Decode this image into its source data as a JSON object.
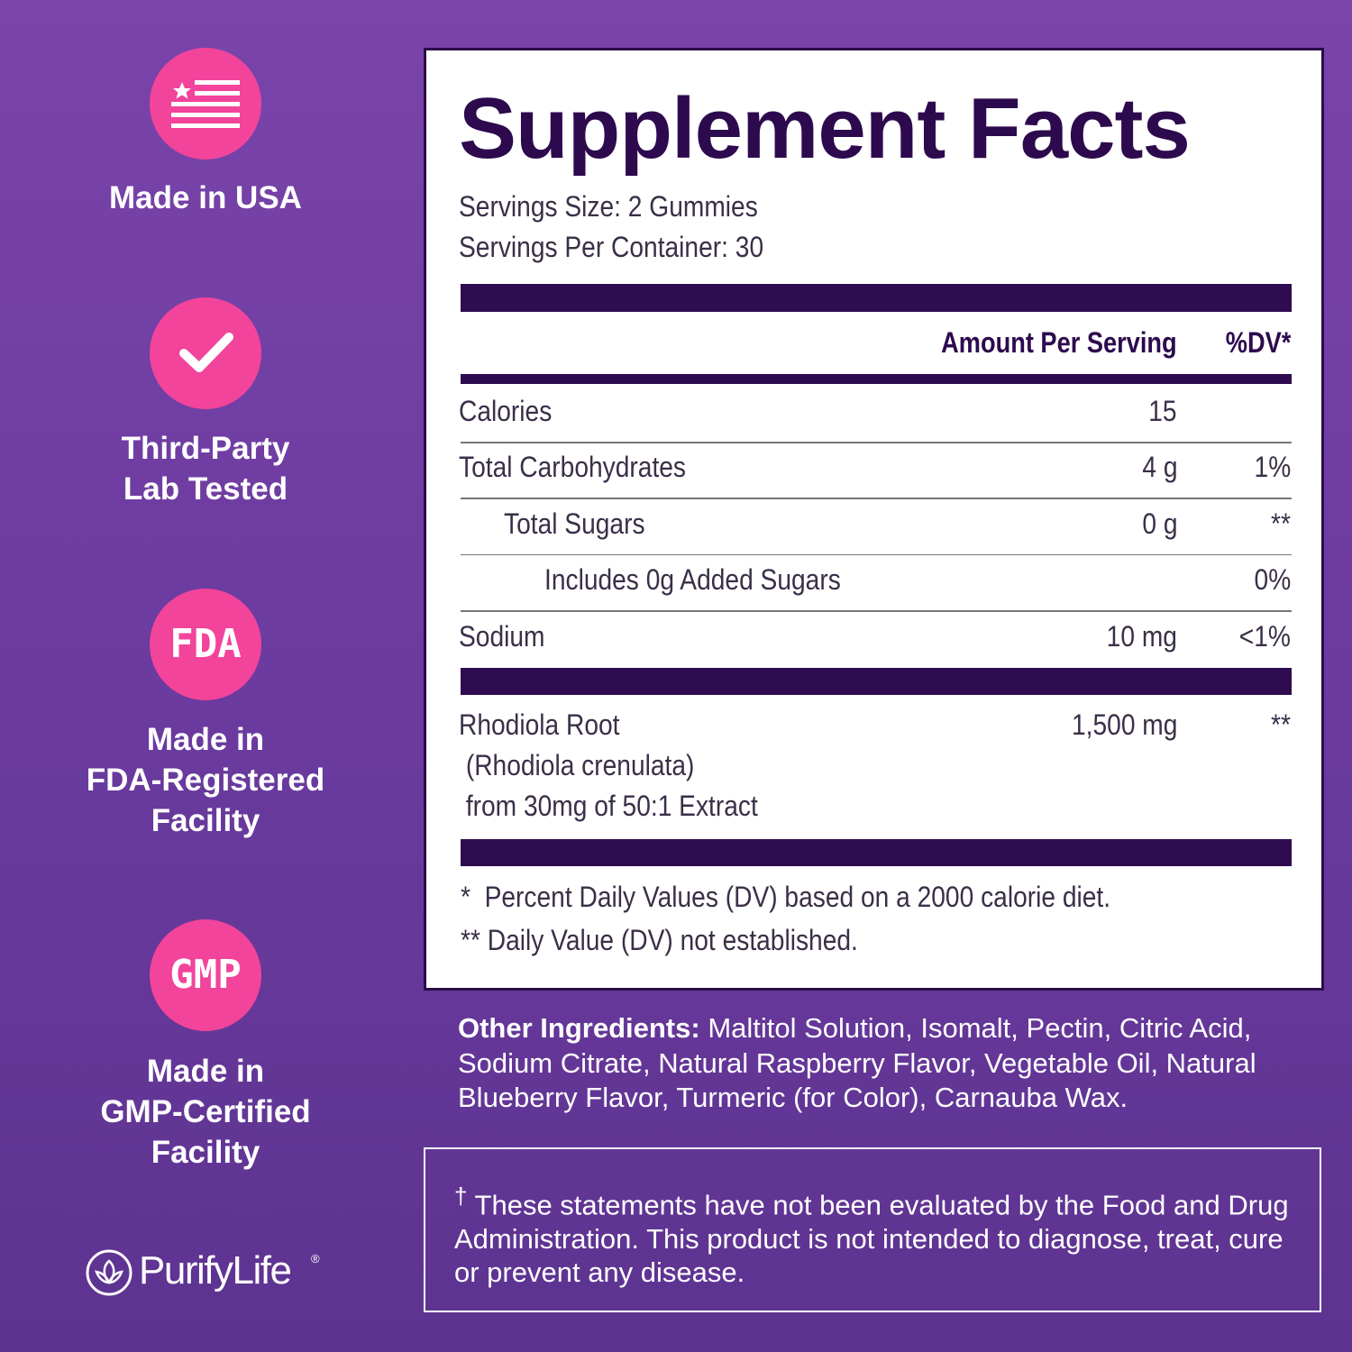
{
  "badges": [
    {
      "icon": null,
      "lines": [
        "Made in USA"
      ]
    },
    {
      "icon": null,
      "lines": [
        "Third-Party",
        "Lab Tested"
      ]
    },
    {
      "icon": "FDA",
      "lines": [
        "Made in",
        "FDA-Registered",
        "Facility"
      ]
    },
    {
      "icon": "GMP",
      "lines": [
        "Made in",
        "GMP-Certified",
        "Facility"
      ]
    }
  ],
  "brand": {
    "name": "PurifyLife",
    "mark": "®"
  },
  "facts": {
    "title": "Supplement Facts",
    "serving_size": "Servings Size: 2 Gummies",
    "servings_per_container": "Servings Per Container: 30",
    "header": {
      "amount": "Amount Per Serving",
      "dv": "%DV*"
    },
    "rows": [
      {
        "name": "Calories",
        "amount": "15"
      },
      {
        "name": "Total Carbohydrates",
        "amount": "4 g",
        "dv": "1%"
      },
      {
        "name": "Total Sugars",
        "amount": "0 g",
        "dv": "**"
      },
      {
        "name": "Includes 0g Added Sugars",
        "dv": "0%"
      },
      {
        "name": "Sodium",
        "amount": "10 mg",
        "dv": "<1%"
      }
    ],
    "ingredient": {
      "lines": [
        "Rhodiola Root",
        " (Rhodiola crenulata)",
        " from 30mg of 50:1 Extract"
      ],
      "amount": "1,500 mg",
      "dv": "**"
    },
    "footnotes": [
      "*  Percent Daily Values (DV) based on a 2000 calorie diet.",
      "** Daily Value (DV) not established."
    ]
  },
  "other_ingredients": {
    "label": "Other Ingredients:",
    "text": " Maltitol Solution, Isomalt, Pectin, Citric Acid, Sodium Citrate, Natural Raspberry Flavor, Vegetable Oil, Natural Blueberry Flavor, Turmeric (for Color), Carnauba Wax."
  },
  "disclaimer": {
    "dagger": "†",
    "text": " These statements have not been evaluated by the Food and Drug Administration. This product is not intended to diagnose, treat, cure or prevent any disease."
  }
}
